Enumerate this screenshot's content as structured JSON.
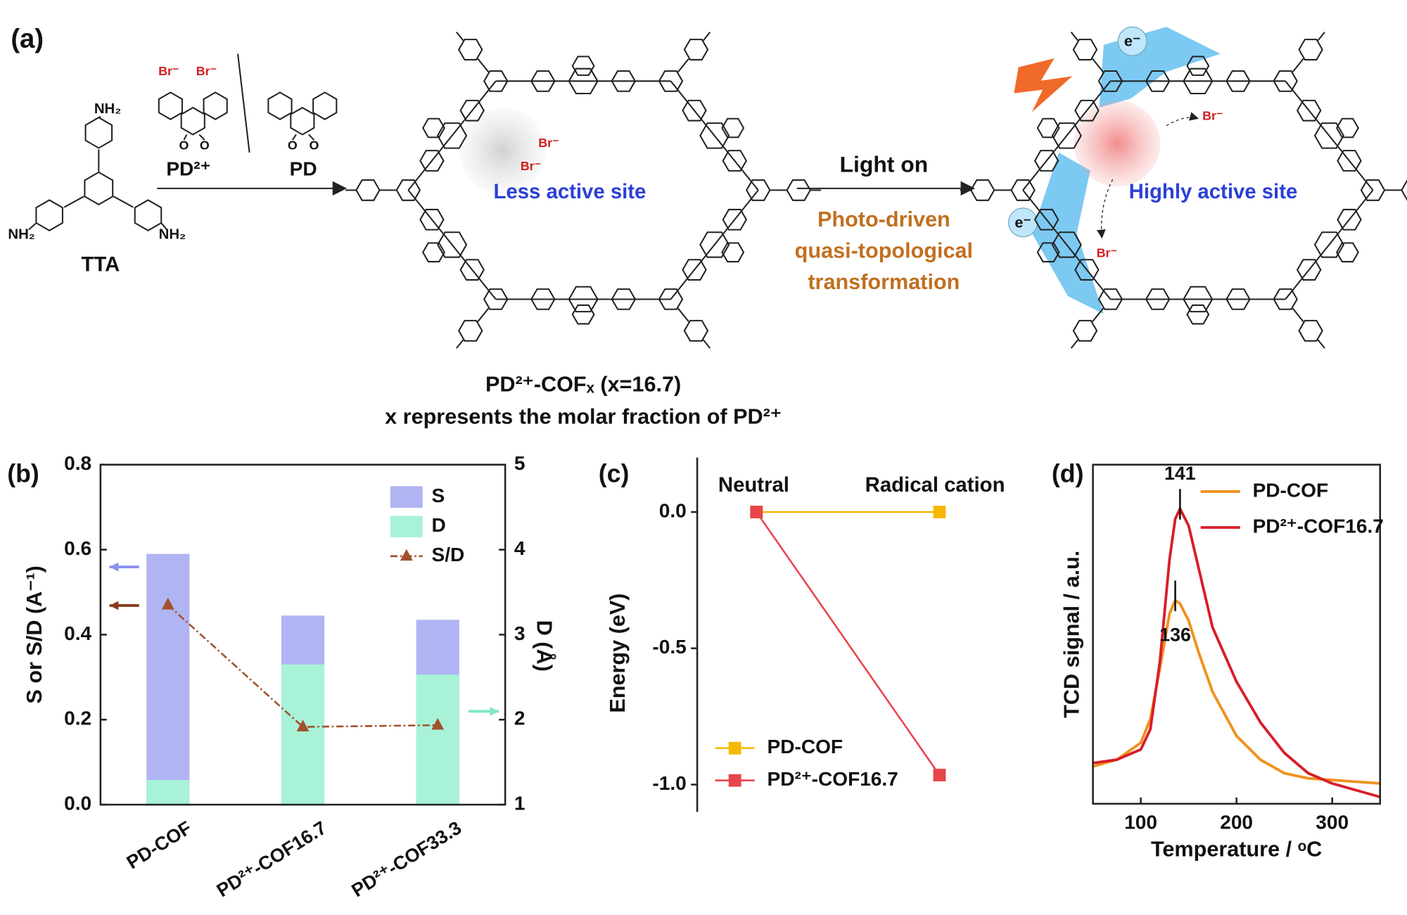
{
  "panel_a": {
    "label": "(a)",
    "reactant": "TTA",
    "amine": "NH₂",
    "reagent_1": "PD²⁺",
    "reagent_2": "PD",
    "bromide": "Br⁻",
    "oxygen": "O",
    "product_label": "PD²⁺-COFₓ (x=16.7)",
    "product_note": "x represents the molar fraction of PD²⁺",
    "less_active": "Less active site",
    "condition": "Light on",
    "process": [
      "Photo-driven",
      "quasi-topological",
      "transformation"
    ],
    "electron": "e⁻",
    "highly_active": "Highly active site"
  },
  "chart_data": [
    {
      "type": "bar",
      "panel_label": "(b)",
      "categories": [
        "PD-COF",
        "PD²⁺-COF16.7",
        "PD²⁺-COF33.3"
      ],
      "series": [
        {
          "name": "S",
          "color": "#b0b4f2",
          "values": [
            0.59,
            0.445,
            0.435
          ]
        },
        {
          "name": "D",
          "color": "#a8f2d8",
          "axis": "y2",
          "values": [
            1.29,
            2.65,
            2.53
          ]
        },
        {
          "name": "S/D",
          "color": "#a0522d",
          "mark": "line",
          "values": [
            0.47,
            0.183,
            0.187
          ]
        }
      ],
      "ylabel": "S or S/D (A⁻¹)",
      "y2label": "D (Å)",
      "ylim": [
        0,
        0.8
      ],
      "yticks": [
        {
          "value": 0,
          "label": "0.0"
        },
        0.2,
        0.4,
        0.6,
        0.8
      ],
      "y2lim": [
        1,
        5
      ],
      "y2ticks": [
        1,
        2,
        3,
        4,
        5
      ],
      "legend": "upper right"
    },
    {
      "type": "line",
      "panel_label": "(c)",
      "categories": [
        "Neutral",
        "Radical cation"
      ],
      "series": [
        {
          "name": "PD-COF",
          "color": "#f5b800",
          "values": [
            0,
            0
          ]
        },
        {
          "name": "PD²⁺-COF16.7",
          "color": "#e8454a",
          "values": [
            0,
            -0.965
          ]
        }
      ],
      "ylabel": "Energy (eV)",
      "ylim": [
        -1.1,
        0.2
      ],
      "yticks": [
        {
          "value": -1,
          "label": "-1.0"
        },
        -0.5,
        {
          "value": 0,
          "label": "0.0"
        }
      ],
      "legend": "lower left"
    },
    {
      "type": "line",
      "panel_label": "(d)",
      "x": [
        50,
        75,
        100,
        110,
        120,
        130,
        136,
        141,
        150,
        160,
        175,
        200,
        225,
        250,
        275,
        300,
        325,
        350
      ],
      "series": [
        {
          "name": "PD-COF",
          "color": "#f0901e",
          "values": [
            0.11,
            0.13,
            0.18,
            0.25,
            0.4,
            0.56,
            0.6,
            0.59,
            0.54,
            0.45,
            0.33,
            0.2,
            0.13,
            0.09,
            0.075,
            0.07,
            0.065,
            0.06
          ]
        },
        {
          "name": "PD²⁺-COF16.7",
          "color": "#d81e28",
          "values": [
            0.12,
            0.13,
            0.16,
            0.22,
            0.42,
            0.72,
            0.84,
            0.87,
            0.82,
            0.7,
            0.52,
            0.36,
            0.24,
            0.15,
            0.09,
            0.06,
            0.04,
            0.02
          ]
        }
      ],
      "annotations": [
        {
          "text": "141",
          "x": 141
        },
        {
          "text": "136",
          "x": 136
        }
      ],
      "xlabel": "Temperature / ᵒC",
      "ylabel": "TCD signal / a.u.",
      "xlim": [
        50,
        350
      ],
      "xticks": [
        100,
        200,
        300
      ],
      "ylim": [
        0,
        1
      ],
      "legend": "upper right"
    }
  ]
}
